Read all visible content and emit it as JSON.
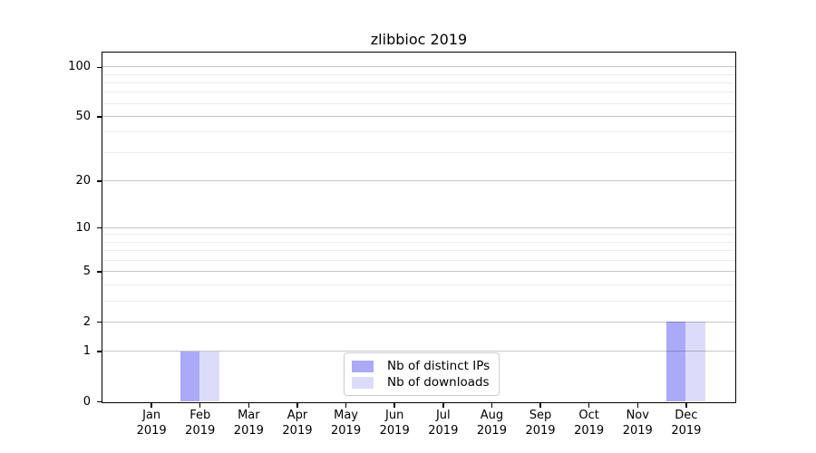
{
  "figure": {
    "background": "#ffffff"
  },
  "chart_data": {
    "type": "bar",
    "title": "zlibbioc 2019",
    "categories": [
      "Jan 2019",
      "Feb 2019",
      "Mar 2019",
      "Apr 2019",
      "May 2019",
      "Jun 2019",
      "Jul 2019",
      "Aug 2019",
      "Sep 2019",
      "Oct 2019",
      "Nov 2019",
      "Dec 2019"
    ],
    "series": [
      {
        "name": "Nb of distinct IPs",
        "color": "#aaaaf8",
        "values": [
          0,
          1,
          0,
          0,
          0,
          0,
          0,
          0,
          0,
          0,
          0,
          2
        ]
      },
      {
        "name": "Nb of downloads",
        "color": "#dcdcfa",
        "values": [
          0,
          1,
          0,
          0,
          0,
          0,
          0,
          0,
          0,
          0,
          0,
          2
        ]
      }
    ],
    "xlabel": "",
    "ylabel": "",
    "y_scale": "log1p",
    "ylim": [
      0,
      122
    ],
    "y_major_ticks": [
      0,
      1,
      2,
      5,
      10,
      20,
      50,
      100
    ],
    "y_minor_gridlines": [
      3,
      4,
      6,
      7,
      8,
      9,
      30,
      40,
      60,
      70,
      80,
      90
    ],
    "grid": true,
    "legend_position": "lower center"
  },
  "colors": {
    "axis": "#000000",
    "major_grid": "#c6c6c6",
    "minor_grid": "#ececec",
    "legend_border": "#cccccc",
    "bar_distinct_ips": "#aaaaf8",
    "bar_downloads": "#dcdcfa"
  }
}
